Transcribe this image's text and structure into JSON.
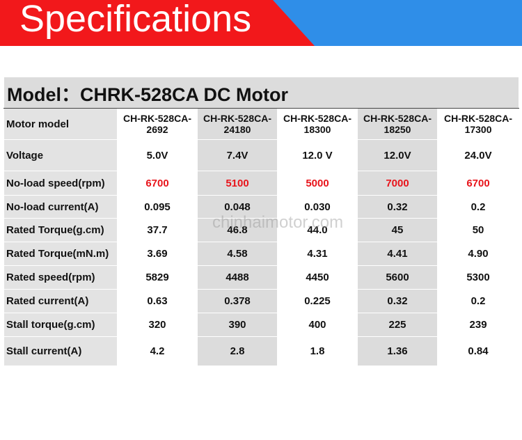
{
  "header": {
    "title": "Specifications"
  },
  "table": {
    "title": "Model：CHRK-528CA  DC  Motor",
    "rows": [
      {
        "cells": [
          "Motor model",
          "CH-RK-528CA-2692",
          "CH-RK-528CA-24180",
          "CH-RK-528CA-18300",
          "CH-RK-528CA-18250",
          "CH-RK-528CA-17300"
        ]
      },
      {
        "cells": [
          "Voltage",
          "5.0V",
          "7.4V",
          "12.0 V",
          "12.0V",
          "24.0V"
        ]
      },
      {
        "cells": [
          "No-load speed(rpm)",
          "6700",
          "5100",
          "5000",
          "7000",
          "6700"
        ],
        "color": "#e8141b"
      },
      {
        "cells": [
          "No-load current(A)",
          "0.095",
          "0.048",
          "0.030",
          "0.32",
          "0.2"
        ]
      },
      {
        "cells": [
          "Rated Torque(g.cm)",
          "37.7",
          "46.8",
          "44.0",
          "45",
          "50"
        ]
      },
      {
        "cells": [
          "Rated Torque(mN.m)",
          "3.69",
          "4.58",
          "4.31",
          "4.41",
          "4.90"
        ]
      },
      {
        "cells": [
          "Rated speed(rpm)",
          "5829",
          "4488",
          "4450",
          "5600",
          "5300"
        ]
      },
      {
        "cells": [
          "Rated current(A)",
          "0.63",
          "0.378",
          "0.225",
          "0.32",
          "0.2"
        ]
      },
      {
        "cells": [
          "Stall torque(g.cm)",
          "320",
          "390",
          "400",
          "225",
          "239"
        ]
      },
      {
        "cells": [
          "Stall current(A)",
          "4.2",
          "2.8",
          "1.8",
          "1.36",
          "0.84"
        ]
      }
    ]
  },
  "watermark": "chinhaimotor.com"
}
